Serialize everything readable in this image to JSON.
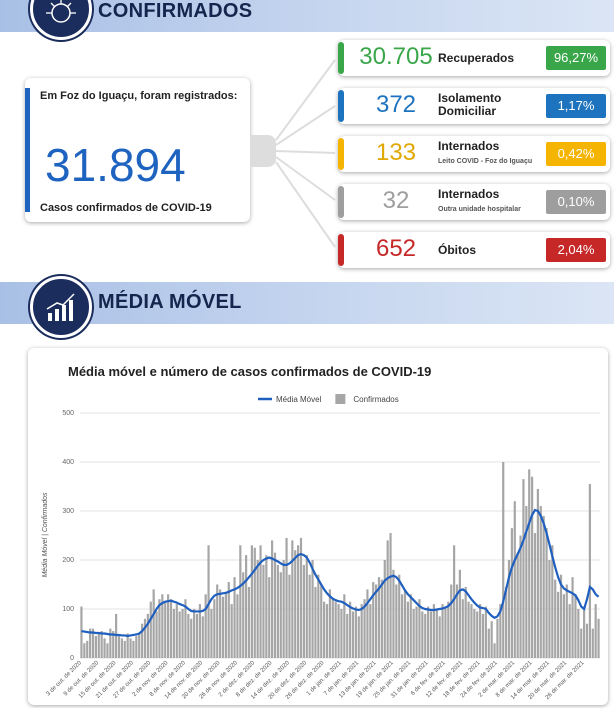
{
  "header": {
    "title": "CONFIRMADOS"
  },
  "summary": {
    "intro": "Em Foz do Iguaçu, foram registrados:",
    "total": "31.894",
    "caption": "Casos confirmados de COVID-19"
  },
  "stats": [
    {
      "value": "30.705",
      "label": "Recuperados",
      "percent": "96,27%",
      "color": "#3aa64a"
    },
    {
      "value": "372",
      "label": "Isolamento Domiciliar",
      "percent": "1,17%",
      "color": "#1e73be"
    },
    {
      "value": "133",
      "label": "Internados",
      "sublabel": "Leito COVID - Foz do Iguaçu",
      "percent": "0,42%",
      "color": "#f5b400"
    },
    {
      "value": "32",
      "label": "Internados",
      "sublabel": "Outra unidade hospitalar",
      "percent": "0,10%",
      "color": "#9e9e9e"
    },
    {
      "value": "652",
      "label": "Óbitos",
      "percent": "2,04%",
      "color": "#c62828"
    }
  ],
  "section": {
    "title": "MÉDIA MÓVEL"
  },
  "chart_data": {
    "type": "bar",
    "title": "Média móvel e número de casos confirmados de COVID-19",
    "y_label": "Média Móvel | Confirmados",
    "ylim": [
      0,
      500
    ],
    "yticks": [
      0,
      100,
      200,
      300,
      400,
      500
    ],
    "grid": true,
    "legend": "top",
    "categories": [
      "3 de out. de 2020",
      null,
      null,
      null,
      null,
      null,
      "9 de out. de 2020",
      null,
      null,
      null,
      null,
      null,
      "15 de out. de 2020",
      null,
      null,
      null,
      null,
      null,
      "21 de out. de 2020",
      null,
      null,
      null,
      null,
      null,
      "27 de out. de 2020",
      null,
      null,
      null,
      null,
      null,
      "2 de nov. de 2020",
      null,
      null,
      null,
      null,
      null,
      "8 de nov. de 2020",
      null,
      null,
      null,
      null,
      null,
      "14 de nov. de 2020",
      null,
      null,
      null,
      null,
      null,
      "20 de nov. de 2020",
      null,
      null,
      null,
      null,
      null,
      "26 de nov. de 2020",
      null,
      null,
      null,
      null,
      null,
      "2 de dez. de 2020",
      null,
      null,
      null,
      null,
      null,
      "8 de dez. de 2020",
      null,
      null,
      null,
      null,
      null,
      "14 de dez. de 2020",
      null,
      null,
      null,
      null,
      null,
      "20 de dez. de 2020",
      null,
      null,
      null,
      null,
      null,
      "26 de dez. de 2020",
      null,
      null,
      null,
      null,
      null,
      "1 de jan. de 2021",
      null,
      null,
      null,
      null,
      null,
      "7 de jan. de 2021",
      null,
      null,
      null,
      null,
      null,
      "13 de jan. de 2021",
      null,
      null,
      null,
      null,
      null,
      "19 de jan. de 2021",
      null,
      null,
      null,
      null,
      null,
      "25 de jan. de 2021",
      null,
      null,
      null,
      null,
      null,
      "31 de jan. de 2021",
      null,
      null,
      null,
      null,
      null,
      "6 de fev. de 2021",
      null,
      null,
      null,
      null,
      null,
      "12 de fev. de 2021",
      null,
      null,
      null,
      null,
      null,
      "18 de fev. de 2021",
      null,
      null,
      null,
      null,
      null,
      "24 de fev. de 2021",
      null,
      null,
      null,
      null,
      null,
      "2 de mar. de 2021",
      null,
      null,
      null,
      null,
      null,
      "8 de mar. de 2021",
      null,
      null,
      null,
      null,
      null,
      "14 de mar. de 2021",
      null,
      null,
      null,
      null,
      null,
      "20 de mar. de 2021",
      null,
      null,
      null,
      null,
      null,
      "26 de mar. de 2021",
      null,
      null,
      null,
      null,
      null
    ],
    "series": [
      {
        "name": "Média Móvel",
        "type": "line",
        "color": "#1f5fbf",
        "values": [
          55,
          54,
          53,
          52,
          52,
          51,
          51,
          50,
          50,
          49,
          48,
          48,
          47,
          47,
          46,
          46,
          45,
          46,
          47,
          48,
          50,
          55,
          62,
          70,
          80,
          90,
          100,
          108,
          112,
          115,
          116,
          117,
          115,
          113,
          110,
          108,
          105,
          100,
          96,
          95,
          95,
          95,
          96,
          100,
          110,
          120,
          127,
          130,
          131,
          132,
          133,
          135,
          138,
          140,
          143,
          147,
          152,
          158,
          165,
          172,
          180,
          188,
          195,
          200,
          203,
          205,
          203,
          200,
          197,
          193,
          190,
          190,
          193,
          198,
          204,
          210,
          212,
          210,
          205,
          195,
          182,
          170,
          160,
          150,
          140,
          132,
          126,
          121,
          118,
          116,
          115,
          112,
          108,
          104,
          101,
          99,
          98,
          100,
          105,
          112,
          120,
          128,
          135,
          142,
          150,
          158,
          163,
          166,
          168,
          165,
          158,
          148,
          138,
          130,
          124,
          118,
          112,
          106,
          102,
          100,
          99,
          98,
          98,
          99,
          100,
          101,
          103,
          106,
          112,
          120,
          130,
          138,
          140,
          136,
          128,
          120,
          113,
          107,
          103,
          102,
          100,
          92,
          86,
          82,
          85,
          95,
          115,
          140,
          165,
          185,
          200,
          212,
          225,
          240,
          258,
          275,
          292,
          302,
          300,
          290,
          275,
          255,
          232,
          208,
          185,
          165,
          150,
          142,
          138,
          135,
          132,
          128,
          118,
          105,
          100,
          120,
          145,
          140,
          130,
          125
        ]
      },
      {
        "name": "Confirmados",
        "type": "bar",
        "color": "#a6a6a6",
        "values": [
          105,
          30,
          35,
          60,
          60,
          45,
          50,
          55,
          40,
          30,
          60,
          55,
          90,
          45,
          40,
          35,
          50,
          40,
          35,
          45,
          50,
          70,
          80,
          90,
          115,
          140,
          95,
          120,
          130,
          115,
          130,
          120,
          100,
          110,
          95,
          100,
          120,
          90,
          80,
          100,
          90,
          110,
          85,
          130,
          230,
          100,
          120,
          150,
          140,
          125,
          135,
          155,
          110,
          165,
          130,
          230,
          175,
          210,
          145,
          230,
          225,
          200,
          230,
          190,
          210,
          165,
          240,
          215,
          190,
          175,
          200,
          245,
          170,
          240,
          220,
          230,
          245,
          190,
          210,
          170,
          200,
          145,
          170,
          150,
          115,
          110,
          140,
          120,
          115,
          110,
          100,
          130,
          90,
          115,
          95,
          105,
          85,
          110,
          120,
          140,
          110,
          155,
          150,
          165,
          160,
          200,
          240,
          255,
          180,
          150,
          170,
          130,
          140,
          115,
          130,
          100,
          105,
          120,
          95,
          90,
          105,
          95,
          110,
          100,
          85,
          110,
          105,
          115,
          150,
          230,
          150,
          180,
          120,
          145,
          115,
          110,
          100,
          95,
          110,
          90,
          105,
          60,
          75,
          30,
          80,
          110,
          400,
          145,
          200,
          265,
          320,
          215,
          250,
          365,
          310,
          385,
          370,
          255,
          345,
          310,
          290,
          265,
          200,
          230,
          160,
          135,
          170,
          130,
          150,
          110,
          165,
          130,
          100,
          60,
          105,
          70,
          355,
          60,
          110,
          80
        ]
      }
    ]
  }
}
